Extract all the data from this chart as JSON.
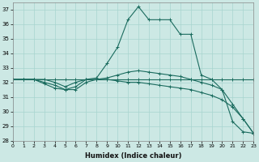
{
  "xlabel": "Humidex (Indice chaleur)",
  "bg_color": "#cce8e4",
  "grid_color": "#a8d4cf",
  "line_color": "#1a6b5e",
  "xlim": [
    0,
    23
  ],
  "ylim": [
    28,
    37.5
  ],
  "xticks": [
    0,
    1,
    2,
    3,
    4,
    5,
    6,
    7,
    8,
    9,
    10,
    11,
    12,
    13,
    14,
    15,
    16,
    17,
    18,
    19,
    20,
    21,
    22,
    23
  ],
  "yticks": [
    28,
    29,
    30,
    31,
    32,
    33,
    34,
    35,
    36,
    37
  ],
  "lines": [
    {
      "x": [
        0,
        1,
        2,
        3,
        4,
        5,
        6,
        7,
        8,
        9,
        10,
        11,
        12,
        13,
        14,
        15,
        16,
        17,
        18,
        19,
        20,
        21,
        22,
        23
      ],
      "y": [
        32.2,
        32.2,
        32.2,
        32.2,
        32.2,
        32.2,
        32.2,
        32.2,
        32.2,
        32.2,
        32.2,
        32.2,
        32.2,
        32.2,
        32.2,
        32.2,
        32.2,
        32.2,
        32.2,
        32.2,
        32.2,
        32.2,
        32.2,
        32.2
      ]
    },
    {
      "x": [
        0,
        1,
        2,
        3,
        4,
        5,
        6,
        7,
        8,
        9,
        10,
        11,
        12,
        13,
        14,
        15,
        16,
        17,
        18,
        19,
        20,
        21,
        22,
        23
      ],
      "y": [
        32.2,
        32.2,
        32.2,
        31.9,
        31.6,
        31.5,
        31.7,
        32.2,
        32.3,
        33.3,
        34.4,
        36.3,
        37.2,
        36.3,
        36.3,
        36.3,
        35.3,
        35.3,
        32.5,
        32.2,
        31.5,
        29.3,
        28.6,
        28.5
      ]
    },
    {
      "x": [
        0,
        1,
        2,
        3,
        4,
        5,
        6,
        7,
        8,
        9,
        10,
        11,
        12,
        13,
        14,
        15,
        16,
        17,
        18,
        19,
        20,
        21,
        22,
        23
      ],
      "y": [
        32.2,
        32.2,
        32.2,
        32.2,
        32.0,
        31.7,
        32.0,
        32.2,
        32.2,
        32.2,
        32.1,
        32.0,
        32.0,
        31.9,
        31.8,
        31.7,
        31.6,
        31.5,
        31.3,
        31.1,
        30.8,
        30.3,
        29.5,
        28.5
      ]
    },
    {
      "x": [
        0,
        1,
        2,
        3,
        4,
        5,
        6,
        7,
        8,
        9,
        10,
        11,
        12,
        13,
        14,
        15,
        16,
        17,
        18,
        19,
        20,
        21,
        22,
        23
      ],
      "y": [
        32.2,
        32.2,
        32.2,
        32.0,
        31.8,
        31.5,
        31.5,
        32.0,
        32.2,
        32.3,
        32.5,
        32.7,
        32.8,
        32.7,
        32.6,
        32.5,
        32.4,
        32.2,
        32.0,
        31.8,
        31.5,
        30.5,
        29.5,
        28.5
      ]
    }
  ]
}
